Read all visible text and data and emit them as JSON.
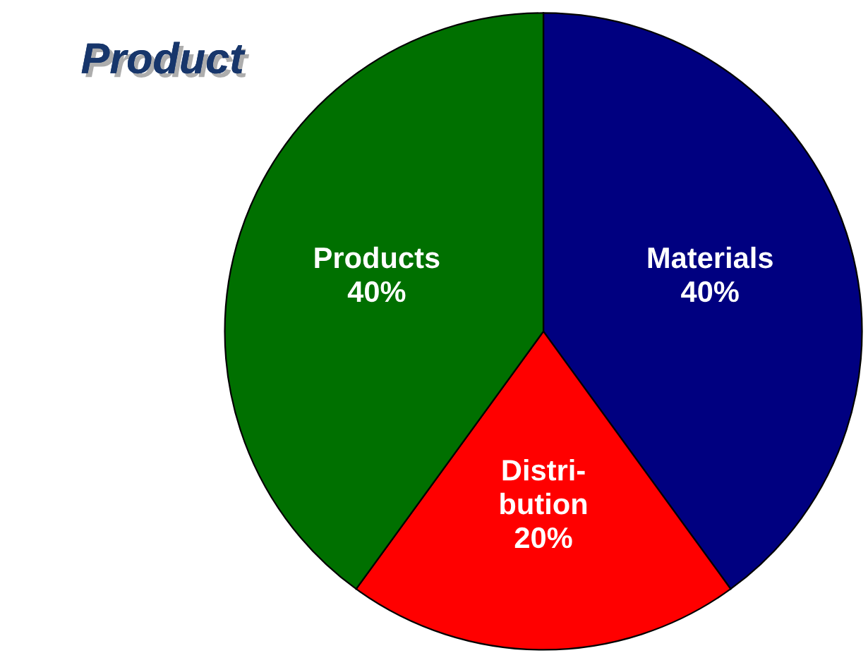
{
  "chart_data": {
    "type": "pie",
    "title": "Product",
    "categories": [
      "Materials",
      "Distri-\nbution",
      "Products"
    ],
    "values": [
      40,
      20,
      40
    ],
    "value_labels": [
      "40%",
      "20%",
      "40%"
    ],
    "colors": [
      "#000080",
      "#ff0000",
      "#007000"
    ],
    "legend": false
  }
}
